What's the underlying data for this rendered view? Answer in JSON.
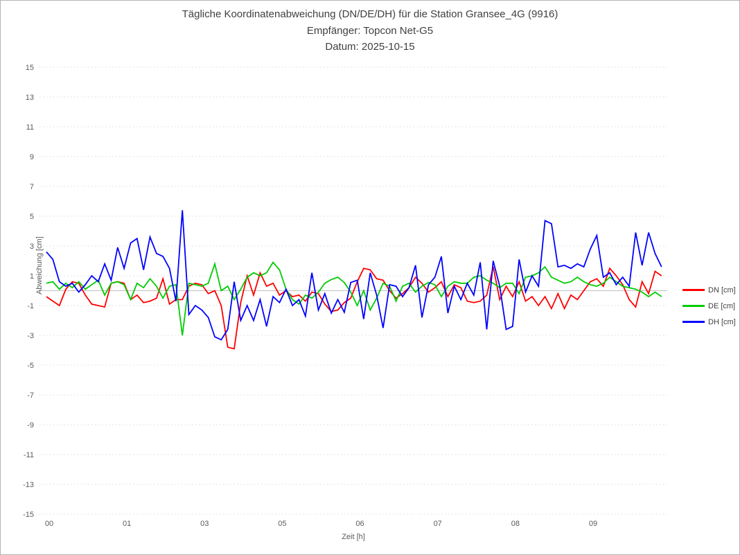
{
  "header": {
    "title": "Tägliche Koordinatenabweichung (DN/DE/DH) für die Station Gransee_4G (9916)",
    "receiver": "Empfänger: Topcon Net-G5",
    "date": "Datum: 2025-10-15"
  },
  "chart_data": {
    "type": "line",
    "title": "Tägliche Koordinatenabweichung (DN/DE/DH) für die Station Gransee_4G (9916)",
    "subtitle": "Empfänger: Topcon Net-G5 — Datum: 2025-10-15",
    "xlabel": "Zeit [h]",
    "ylabel": "Abweichung [cm]",
    "ylim": [
      -15,
      15
    ],
    "y_ticks": [
      15,
      13,
      11,
      9,
      7,
      5,
      3,
      1,
      -1,
      -3,
      -5,
      -7,
      -9,
      -11,
      -13,
      -15
    ],
    "x_tick_labels": [
      "00",
      "01",
      "03",
      "05",
      "06",
      "07",
      "08",
      "09"
    ],
    "samples_per_tick": 12,
    "sample_interval_minutes": 5,
    "grid": "horizontal-dotted",
    "zero_line": true,
    "legend_position": "right",
    "colors": {
      "grid": "#d9d9d9",
      "zero_line": "#c0c0c0",
      "tick_text": "#595959"
    },
    "series": [
      {
        "name": "DN [cm]",
        "color": "#ff0000",
        "values": [
          -0.4,
          -0.7,
          -1.0,
          0.1,
          0.6,
          0.5,
          -0.3,
          -0.9,
          -1.0,
          -1.1,
          0.5,
          0.6,
          0.5,
          -0.6,
          -0.3,
          -0.8,
          -0.7,
          -0.5,
          0.8,
          -0.9,
          -0.6,
          -0.6,
          0.3,
          0.5,
          0.4,
          -0.2,
          0.0,
          -1.0,
          -3.8,
          -3.9,
          -0.8,
          1.0,
          -0.3,
          1.2,
          0.3,
          0.5,
          -0.3,
          0.0,
          -0.4,
          -0.3,
          -0.7,
          -0.1,
          -0.2,
          -0.9,
          -1.4,
          -1.3,
          -0.8,
          -0.5,
          0.6,
          1.5,
          1.4,
          0.8,
          0.7,
          0.0,
          -0.5,
          -0.2,
          0.2,
          0.9,
          0.5,
          -0.1,
          0.2,
          0.6,
          -0.4,
          0.4,
          0.2,
          -0.7,
          -0.8,
          -0.7,
          -0.3,
          1.6,
          -0.6,
          0.3,
          -0.4,
          0.6,
          -0.7,
          -0.4,
          -1.0,
          -0.4,
          -1.2,
          -0.2,
          -1.2,
          -0.3,
          -0.6,
          0.0,
          0.6,
          0.8,
          0.3,
          1.5,
          1.0,
          0.4,
          -0.6,
          -1.1,
          0.6,
          -0.2,
          1.3,
          1.0
        ]
      },
      {
        "name": "DE [cm]",
        "color": "#00cc00",
        "values": [
          0.5,
          0.6,
          0.1,
          0.5,
          0.2,
          0.6,
          0.1,
          0.4,
          0.7,
          -0.3,
          0.5,
          0.6,
          0.4,
          -0.6,
          0.5,
          0.2,
          0.8,
          0.3,
          -0.5,
          0.3,
          0.4,
          -3.0,
          0.5,
          0.4,
          0.3,
          0.5,
          1.8,
          0.0,
          0.3,
          -0.6,
          0.1,
          0.9,
          1.2,
          1.0,
          1.2,
          1.9,
          1.4,
          0.1,
          -0.6,
          -0.9,
          -0.3,
          -0.5,
          -0.1,
          0.5,
          0.75,
          0.9,
          0.55,
          -0.1,
          -1.0,
          0.0,
          -1.3,
          -0.5,
          0.5,
          0.3,
          -0.7,
          0.3,
          0.5,
          -0.1,
          0.3,
          0.55,
          0.4,
          -0.4,
          0.3,
          0.6,
          0.5,
          0.5,
          0.9,
          1.0,
          0.7,
          0.5,
          0.2,
          0.5,
          0.5,
          -0.2,
          0.9,
          1.0,
          1.2,
          1.6,
          0.9,
          0.7,
          0.5,
          0.6,
          0.9,
          0.6,
          0.4,
          0.3,
          0.5,
          0.9,
          0.6,
          0.3,
          0.2,
          0.1,
          -0.1,
          -0.4,
          -0.1,
          -0.4
        ]
      },
      {
        "name": "DH [cm]",
        "color": "#0000ff",
        "values": [
          2.6,
          2.1,
          0.6,
          0.3,
          0.5,
          -0.1,
          0.4,
          1.0,
          0.6,
          1.8,
          0.7,
          2.9,
          1.5,
          3.2,
          3.5,
          1.4,
          3.6,
          2.5,
          2.3,
          1.5,
          -0.7,
          5.4,
          -1.6,
          -1.0,
          -1.3,
          -1.8,
          -3.1,
          -3.3,
          -2.6,
          0.6,
          -2.0,
          -1.0,
          -2.0,
          -0.6,
          -2.4,
          -0.4,
          -0.8,
          0.1,
          -1.0,
          -0.6,
          -1.7,
          1.2,
          -1.3,
          -0.2,
          -1.5,
          -0.6,
          -1.45,
          0.55,
          0.7,
          -1.9,
          1.2,
          -0.3,
          -2.5,
          0.4,
          0.3,
          -0.4,
          0.2,
          1.7,
          -1.8,
          0.4,
          0.9,
          2.3,
          -1.5,
          0.3,
          -0.6,
          0.5,
          -0.3,
          1.9,
          -2.6,
          2.0,
          0.3,
          -2.6,
          -2.4,
          2.1,
          -0.1,
          1.0,
          0.3,
          4.7,
          4.5,
          1.6,
          1.7,
          1.5,
          1.8,
          1.6,
          2.8,
          3.7,
          0.9,
          1.2,
          0.4,
          0.9,
          0.3,
          3.9,
          1.7,
          3.9,
          2.5,
          1.6
        ]
      }
    ]
  }
}
